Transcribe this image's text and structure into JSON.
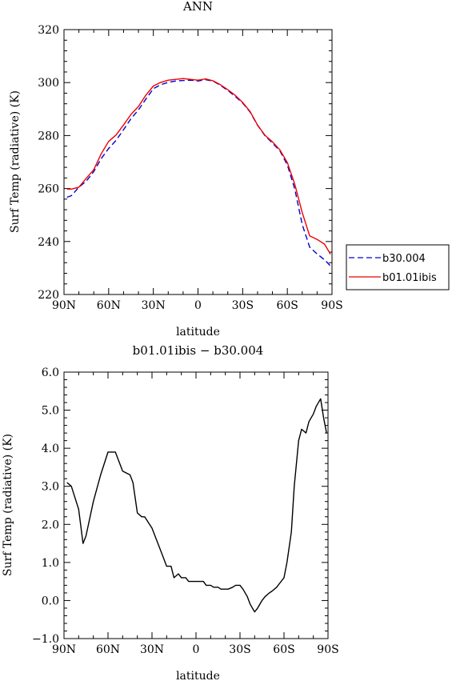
{
  "chart_data": [
    {
      "type": "line",
      "title": "ANN",
      "xlabel": "latitude",
      "ylabel": "Surf Temp (radiative) (K)",
      "xlim": [
        90,
        -90
      ],
      "ylim": [
        220,
        320
      ],
      "x_ticks": [
        90,
        60,
        30,
        0,
        -30,
        -60,
        -90
      ],
      "x_tick_labels": [
        "90N",
        "60N",
        "30N",
        "0",
        "30S",
        "60S",
        "90S"
      ],
      "y_ticks": [
        220,
        240,
        260,
        280,
        300,
        320
      ],
      "y_tick_labels": [
        "220",
        "240",
        "260",
        "280",
        "300",
        "320"
      ],
      "legend_position": "right",
      "series": [
        {
          "name": "b30.004",
          "color": "#0000cc",
          "dash": "dashed",
          "x": [
            88,
            85,
            80,
            75,
            70,
            65,
            60,
            55,
            50,
            45,
            40,
            35,
            30,
            25,
            20,
            15,
            10,
            5,
            0,
            -5,
            -10,
            -15,
            -20,
            -25,
            -30,
            -35,
            -40,
            -45,
            -50,
            -55,
            -60,
            -65,
            -70,
            -75,
            -80,
            -85,
            -89
          ],
          "y": [
            256.7,
            257.3,
            260.5,
            262.8,
            266.4,
            271.3,
            275.1,
            278.2,
            282.2,
            286.4,
            289.7,
            293.8,
            297.7,
            299.2,
            300.1,
            300.6,
            300.8,
            300.9,
            300.6,
            301.1,
            300.6,
            299.0,
            297.0,
            294.8,
            292.3,
            288.9,
            283.9,
            279.9,
            277.2,
            274.2,
            268.9,
            259.8,
            246.4,
            237.9,
            235.3,
            233.1,
            230.8
          ]
        },
        {
          "name": "b01.01ibis",
          "color": "#ee0000",
          "dash": "solid",
          "x": [
            88,
            85,
            80,
            75,
            70,
            65,
            60,
            55,
            50,
            45,
            40,
            35,
            30,
            25,
            20,
            15,
            10,
            5,
            0,
            -5,
            -10,
            -15,
            -20,
            -25,
            -30,
            -35,
            -40,
            -45,
            -50,
            -55,
            -60,
            -65,
            -70,
            -75,
            -80,
            -85,
            -89
          ],
          "y": [
            259.8,
            259.8,
            260.5,
            263.9,
            267.1,
            273.1,
            277.8,
            280.2,
            284.0,
            288.0,
            291.0,
            295.3,
            298.7,
            300.1,
            300.9,
            301.2,
            301.5,
            301.2,
            300.9,
            301.4,
            300.7,
            299.2,
            297.3,
            295.2,
            292.5,
            289.1,
            284.0,
            280.1,
            277.6,
            274.6,
            269.8,
            261.6,
            250.9,
            242.1,
            240.8,
            239.0,
            235.2
          ]
        }
      ]
    },
    {
      "type": "line",
      "title": "b01.01ibis − b30.004",
      "xlabel": "latitude",
      "ylabel": "Surf Temp (radiative) (K)",
      "xlim": [
        90,
        -90
      ],
      "ylim": [
        -1.0,
        6.0
      ],
      "x_ticks": [
        90,
        60,
        30,
        0,
        -30,
        -60,
        -90
      ],
      "x_tick_labels": [
        "90N",
        "60N",
        "30N",
        "0",
        "30S",
        "60S",
        "90S"
      ],
      "y_ticks": [
        -1,
        0,
        1,
        2,
        3,
        4,
        5,
        6
      ],
      "y_tick_labels": [
        "−1.0",
        "0.0",
        "1.0",
        "2.0",
        "3.0",
        "4.0",
        "5.0",
        "6.0"
      ],
      "series": [
        {
          "color": "#000000",
          "dash": "solid",
          "x": [
            88,
            85,
            80,
            77,
            75,
            70,
            65,
            60,
            55,
            50,
            45,
            43,
            40,
            37,
            35,
            30,
            27,
            25,
            22,
            20,
            17,
            15,
            12,
            10,
            7,
            5,
            2,
            0,
            -2,
            -5,
            -7,
            -10,
            -12,
            -15,
            -17,
            -20,
            -22,
            -25,
            -27,
            -30,
            -32,
            -35,
            -37,
            -40,
            -42,
            -45,
            -47,
            -50,
            -52,
            -55,
            -57,
            -60,
            -62,
            -65,
            -67,
            -70,
            -72,
            -75,
            -77,
            -80,
            -82,
            -85,
            -87,
            -89
          ],
          "y": [
            3.1,
            3.0,
            2.4,
            1.5,
            1.7,
            2.6,
            3.3,
            3.9,
            3.9,
            3.4,
            3.3,
            3.1,
            2.3,
            2.2,
            2.2,
            1.9,
            1.6,
            1.4,
            1.1,
            0.9,
            0.9,
            0.6,
            0.7,
            0.6,
            0.6,
            0.5,
            0.5,
            0.5,
            0.5,
            0.5,
            0.4,
            0.4,
            0.35,
            0.35,
            0.3,
            0.3,
            0.3,
            0.35,
            0.4,
            0.4,
            0.3,
            0.1,
            -0.1,
            -0.3,
            -0.2,
            0.0,
            0.1,
            0.2,
            0.25,
            0.35,
            0.45,
            0.6,
            1.0,
            1.8,
            3.0,
            4.2,
            4.5,
            4.4,
            4.7,
            4.9,
            5.1,
            5.3,
            4.8,
            4.4
          ]
        }
      ]
    }
  ]
}
